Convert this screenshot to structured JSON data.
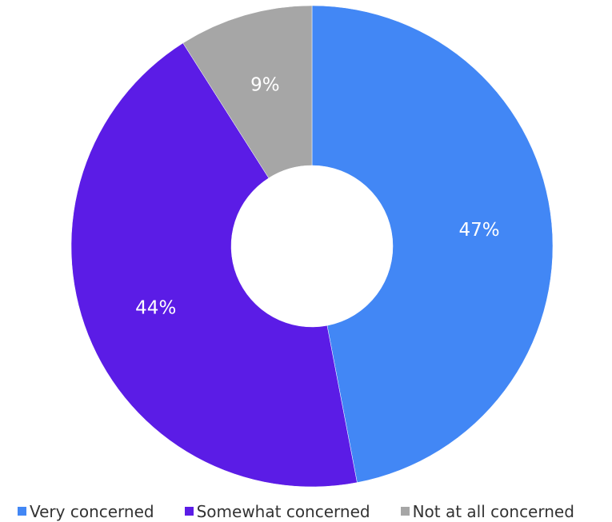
{
  "chart_data": {
    "type": "pie",
    "variant": "donut",
    "categories": [
      "Very concerned",
      "Somewhat concerned",
      "Not at all concerned"
    ],
    "values": [
      47,
      44,
      9
    ],
    "data_labels": [
      "47%",
      "44%",
      "9%"
    ],
    "colors": [
      "#4287f5",
      "#5b1ce6",
      "#a6a6a6"
    ],
    "start_angle_degrees": 0,
    "direction": "clockwise",
    "legend_position": "bottom-left"
  }
}
